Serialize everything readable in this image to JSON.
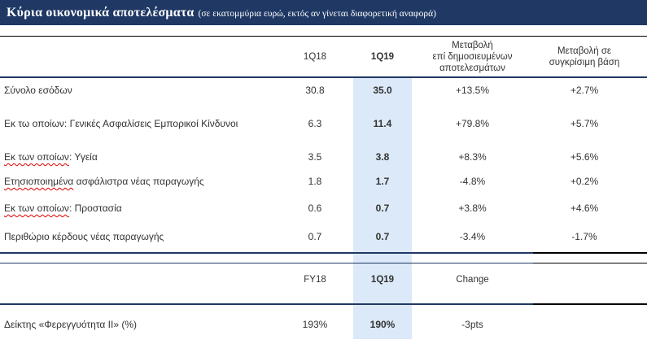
{
  "title": {
    "main": "Κύρια οικονομικά αποτελέσματα",
    "subtitle": "(σε εκατομμύρια ευρώ, εκτός αν γίνεται διαφορετική αναφορά)"
  },
  "colors": {
    "navy": "#1F3864",
    "highlight": "#DCE9F8",
    "black": "#000000",
    "squiggle_red": "#E00000",
    "text": "#333333",
    "title_text": "#FFFFFF"
  },
  "table1": {
    "col_headers": {
      "q18": "1Q18",
      "q19": "1Q19",
      "chg_pub": "Μεταβολή\nεπί δημοσιευμένων\nαποτελεσμάτων",
      "chg_comp": "Μεταβολή σε\nσυγκρίσιμη βάση"
    },
    "rows": [
      {
        "label_parts": [
          {
            "text": "Σύνολο εσόδων",
            "misspelled": false
          }
        ],
        "q18": "30.8",
        "q19": "35.0",
        "chg_pub": "+13.5%",
        "chg_comp": "+2.7%"
      },
      {
        "label_parts": [
          {
            "text": "Εκ τω οποίων: Γενικές Ασφαλίσεις Εμπορικοί Κίνδυνοι",
            "misspelled": false
          }
        ],
        "q18": "6.3",
        "q19": "11.4",
        "chg_pub": "+79.8%",
        "chg_comp": "+5.7%"
      },
      {
        "label_parts": [
          {
            "text": "Εκ των οποίων",
            "misspelled": true
          },
          {
            "text": ":  Υγεία",
            "misspelled": false
          }
        ],
        "q18": "3.5",
        "q19": "3.8",
        "chg_pub": "+8.3%",
        "chg_comp": "+5.6%"
      },
      {
        "label_parts": [
          {
            "text": "Ετησιοποιημένα",
            "misspelled": true
          },
          {
            "text": " ασφάλιστρα νέας παραγωγής",
            "misspelled": false
          }
        ],
        "q18": "1.8",
        "q19": "1.7",
        "chg_pub": "-4.8%",
        "chg_comp": "+0.2%"
      },
      {
        "label_parts": [
          {
            "text": " ",
            "misspelled": false
          },
          {
            "text": "Εκ των οποίων",
            "misspelled": true
          },
          {
            "text": ": Προστασία",
            "misspelled": false
          }
        ],
        "q18": "0.6",
        "q19": "0.7",
        "chg_pub": "+3.8%",
        "chg_comp": "+4.6%"
      },
      {
        "label_parts": [
          {
            "text": "Περιθώριο κέρδους νέας παραγωγής",
            "misspelled": false
          }
        ],
        "q18": "0.7",
        "q19": "0.7",
        "chg_pub": "-3.4%",
        "chg_comp": "-1.7%"
      }
    ]
  },
  "table2": {
    "col_headers": {
      "fy18": "FY18",
      "q19": "1Q19",
      "change": "Change"
    },
    "rows": [
      {
        "label_parts": [
          {
            "text": "Δείκτης «Φερεγγυότητα II» (%)",
            "misspelled": false
          }
        ],
        "fy18": "193%",
        "q19": "190%",
        "change": "-3pts"
      }
    ]
  }
}
